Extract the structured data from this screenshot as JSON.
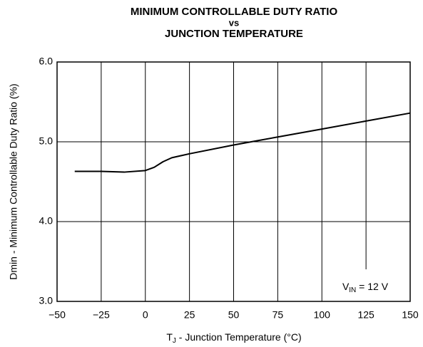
{
  "chart_data": {
    "type": "line",
    "title": [
      "MINIMUM CONTROLLABLE DUTY RATIO",
      "vs",
      "JUNCTION TEMPERATURE"
    ],
    "x_label": {
      "main": "T",
      "sub": "J",
      "rest": " - Junction Temperature (°C)"
    },
    "y_label": "Dmin - Minimum Controllable Duty Ratio (%)",
    "annotation": {
      "main": "V",
      "sub": "IN",
      "rest": " = 12 V"
    },
    "x": [
      -40,
      -25,
      -12,
      0,
      5,
      10,
      15,
      25,
      50,
      60,
      75,
      100,
      125,
      150
    ],
    "series": [
      {
        "name": "Dmin",
        "color": "#000000",
        "values": [
          4.63,
          4.63,
          4.62,
          4.64,
          4.68,
          4.75,
          4.8,
          4.85,
          4.96,
          5.0,
          5.06,
          5.16,
          5.26,
          5.36
        ]
      }
    ],
    "xlim": [
      -50,
      150
    ],
    "xticks": [
      {
        "value": -50,
        "label": "−50"
      },
      {
        "value": -25,
        "label": "−25"
      },
      0,
      25,
      50,
      75,
      100,
      125,
      150
    ],
    "ylim": [
      3,
      6
    ],
    "yticks": [
      {
        "value": 3,
        "label": "3.0"
      },
      {
        "value": 4,
        "label": "4.0"
      },
      {
        "value": 5,
        "label": "5.0"
      },
      {
        "value": 6,
        "label": "6.0"
      }
    ],
    "grid": true
  }
}
